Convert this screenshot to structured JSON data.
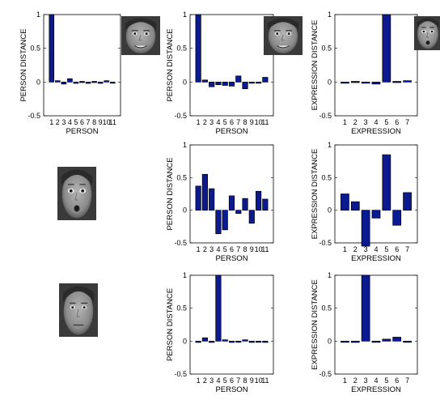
{
  "face_labels": {
    "face_smile": "smiling face photo",
    "face_surprise": "surprised face photo",
    "face_neutral": "neutral face photo"
  },
  "chart_data": [
    {
      "type": "bar",
      "xlabel": "PERSON",
      "ylabel": "PERSON DISTANCE",
      "ylim": [
        -0.5,
        1
      ],
      "yticks": [
        "-0.5",
        "0",
        "0.5",
        "1"
      ],
      "categories": [
        "1",
        "2",
        "3",
        "4",
        "5",
        "6",
        "7",
        "8",
        "9",
        "10",
        "11"
      ],
      "values": [
        1.0,
        0.02,
        -0.03,
        0.05,
        -0.02,
        0.01,
        -0.02,
        0.01,
        -0.02,
        0.02,
        -0.01
      ],
      "inset_image": "face_smile"
    },
    {
      "type": "bar",
      "xlabel": "PERSON",
      "ylabel": "PERSON DISTANCE",
      "ylim": [
        -0.5,
        1
      ],
      "yticks": [
        "-0.5",
        "0",
        "0.5",
        "1"
      ],
      "categories": [
        "1",
        "2",
        "3",
        "4",
        "5",
        "6",
        "7",
        "8",
        "9",
        "10",
        "11"
      ],
      "values": [
        1.0,
        0.03,
        -0.07,
        -0.04,
        -0.05,
        -0.06,
        0.09,
        -0.1,
        -0.01,
        -0.01,
        0.07
      ],
      "inset_image": "face_smile"
    },
    {
      "type": "bar",
      "xlabel": "EXPRESSION",
      "ylabel": "EXPRESSION DISTANCE",
      "ylim": [
        -0.5,
        1
      ],
      "yticks": [
        "-0.5",
        "0",
        "0.5",
        "1"
      ],
      "categories": [
        "1",
        "2",
        "3",
        "4",
        "5",
        "6",
        "7"
      ],
      "values": [
        -0.01,
        0.01,
        -0.01,
        -0.03,
        1.0,
        0.01,
        0.02
      ],
      "inset_image": "face_surprise"
    },
    {
      "type": "bar",
      "xlabel": "PERSON",
      "ylabel": "PERSON DISTANCE",
      "ylim": [
        -0.5,
        1
      ],
      "yticks": [
        "-0.5",
        "0",
        "0.5",
        "1"
      ],
      "categories": [
        "1",
        "2",
        "3",
        "4",
        "5",
        "6",
        "7",
        "8",
        "9",
        "10",
        "11"
      ],
      "values": [
        0.37,
        0.55,
        0.33,
        -0.36,
        -0.3,
        0.22,
        -0.05,
        0.18,
        -0.2,
        0.29,
        0.17
      ]
    },
    {
      "type": "bar",
      "xlabel": "EXPRESSION",
      "ylabel": "EXPRESSION DISTANCE",
      "ylim": [
        -0.5,
        1
      ],
      "yticks": [
        "-0.5",
        "0",
        "0.5",
        "1"
      ],
      "categories": [
        "1",
        "2",
        "3",
        "4",
        "5",
        "6",
        "7"
      ],
      "values": [
        0.25,
        0.13,
        -0.55,
        -0.12,
        0.85,
        -0.23,
        0.27
      ]
    },
    {
      "type": "bar",
      "xlabel": "PERSON",
      "ylabel": "PERSON DISTANCE",
      "ylim": [
        -0.5,
        1
      ],
      "yticks": [
        "-0.5",
        "0",
        "0.5",
        "1"
      ],
      "categories": [
        "1",
        "2",
        "3",
        "4",
        "5",
        "6",
        "7",
        "8",
        "9",
        "10",
        "11"
      ],
      "values": [
        -0.02,
        0.05,
        -0.02,
        1.0,
        0.02,
        -0.02,
        -0.01,
        0.02,
        -0.02,
        -0.01,
        -0.02
      ]
    },
    {
      "type": "bar",
      "xlabel": "EXPRESSION",
      "ylabel": "EXPRESSION DISTANCE",
      "ylim": [
        -0.5,
        1
      ],
      "yticks": [
        "-0.5",
        "0",
        "0.5",
        "1"
      ],
      "categories": [
        "1",
        "2",
        "3",
        "4",
        "5",
        "6",
        "7"
      ],
      "values": [
        0.0,
        -0.02,
        1.0,
        -0.01,
        0.03,
        0.06,
        -0.01
      ]
    }
  ]
}
